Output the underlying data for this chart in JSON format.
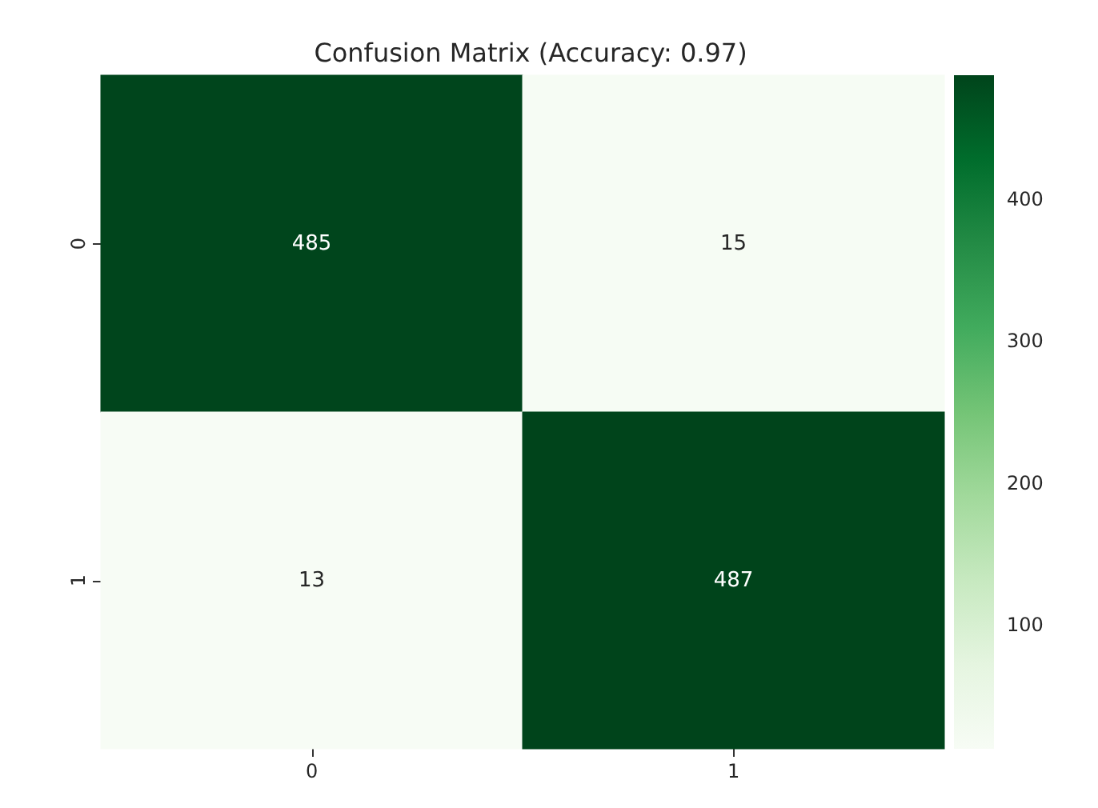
{
  "chart_data": {
    "type": "heatmap",
    "title": "Confusion Matrix (Accuracy: 0.97)",
    "categories": [
      "0",
      "1"
    ],
    "y_categories": [
      "0",
      "1"
    ],
    "cells": [
      [
        485,
        15
      ],
      [
        13,
        487
      ]
    ],
    "clim": [
      13,
      487
    ],
    "cticks": [
      100,
      200,
      300,
      400
    ],
    "data_labels": true,
    "grid": false
  }
}
